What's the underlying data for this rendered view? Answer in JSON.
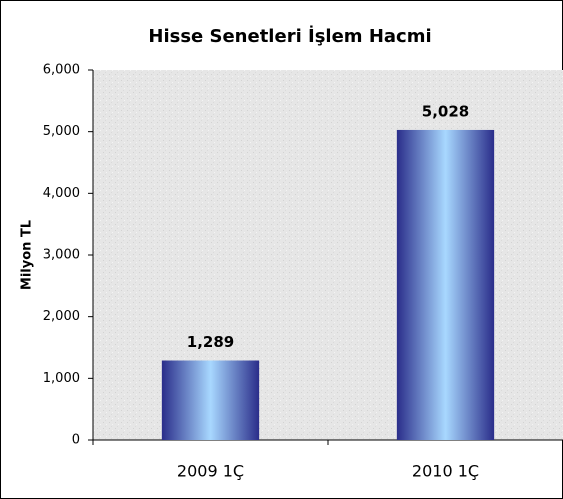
{
  "chart_data": {
    "type": "bar",
    "title": "Hisse Senetleri İşlem Hacmi",
    "y_label": "Milyon TL",
    "categories": [
      "2009 1Ç",
      "2010 1Ç"
    ],
    "values": [
      1289,
      5028
    ],
    "value_labels": [
      "1,289",
      "5,028"
    ],
    "ylim": [
      0,
      6000
    ],
    "yticks": [
      0,
      {
        "value": 1000,
        "label": "1,000"
      },
      {
        "value": 2000,
        "label": "2,000"
      },
      {
        "value": 3000,
        "label": "3,000"
      },
      {
        "value": 4000,
        "label": "4,000"
      },
      {
        "value": 5000,
        "label": "5,000"
      },
      {
        "value": 6000,
        "label": "6,000"
      }
    ],
    "color_dark": "#2a2d8a",
    "color_light": "#a8d8ff"
  }
}
